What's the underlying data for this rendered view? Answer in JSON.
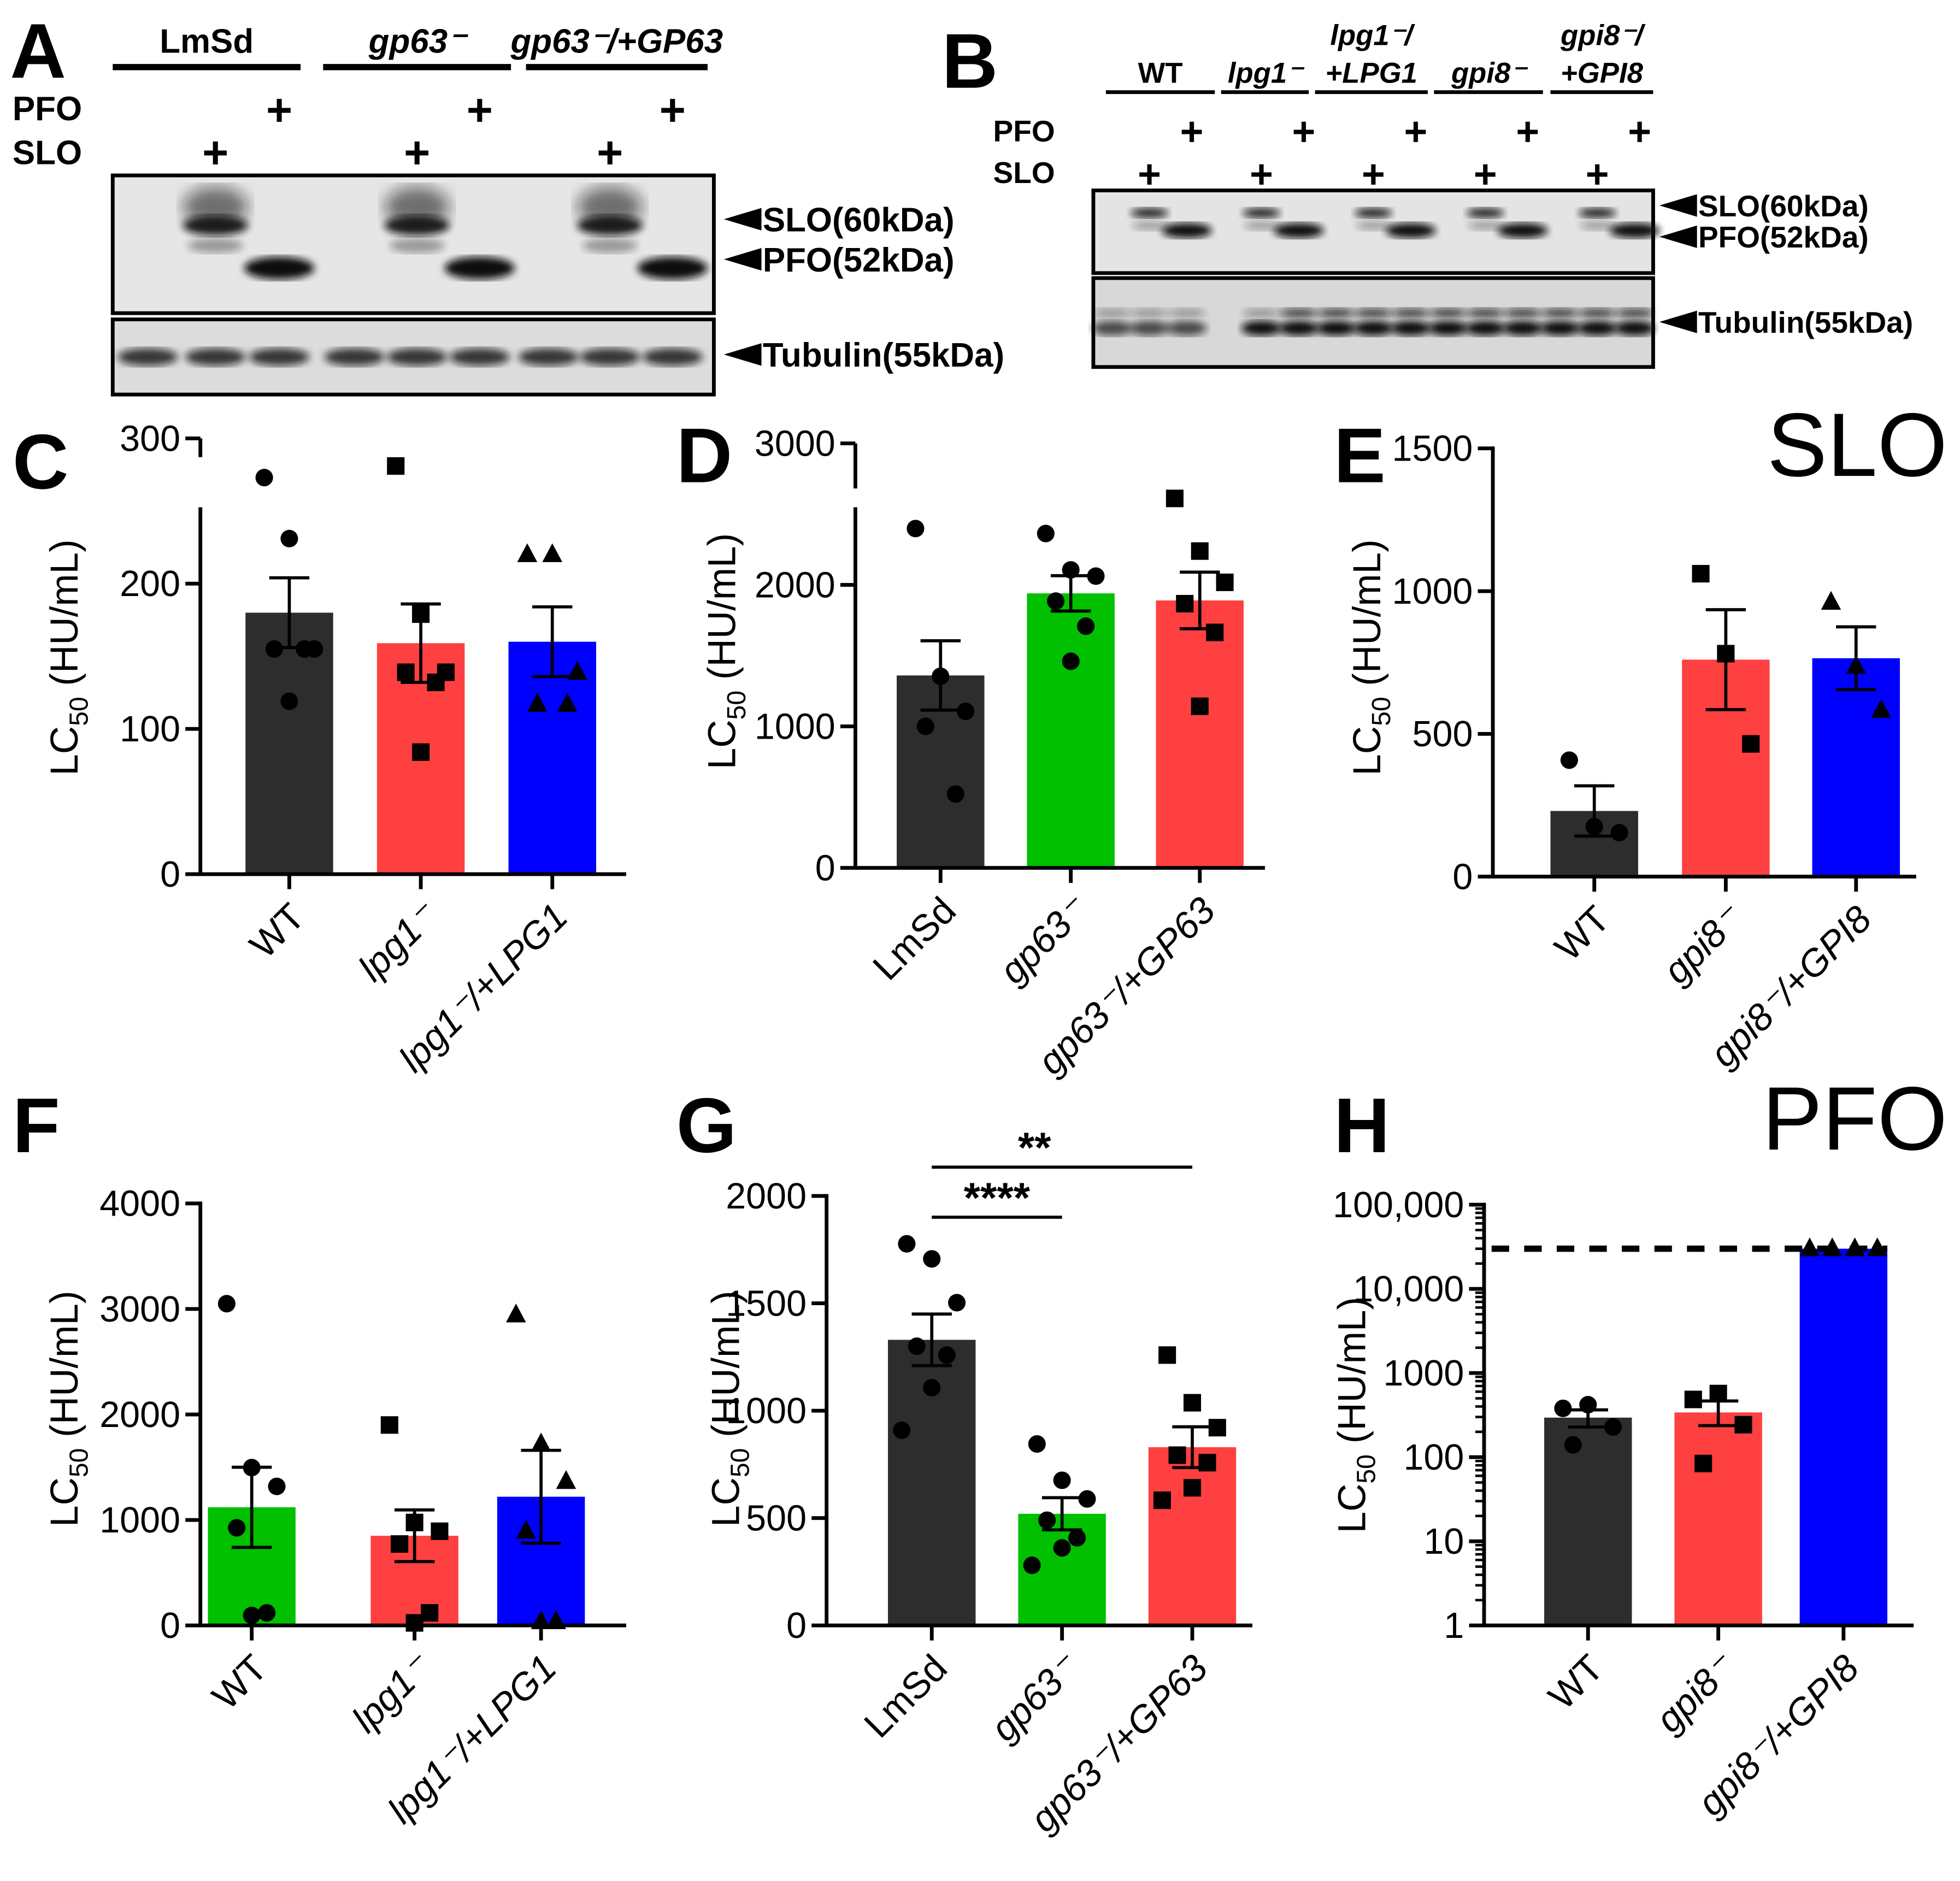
{
  "panels": {
    "A": {
      "letter": "A",
      "groups": [
        "LmSd",
        "gp63⁻",
        "gp63⁻/+GP63"
      ],
      "row_labels": {
        "pfo": "PFO",
        "slo": "SLO"
      },
      "plus_symbol": "+",
      "pfo_lanes": [
        false,
        false,
        true,
        false,
        false,
        true,
        false,
        false,
        true
      ],
      "slo_lanes": [
        false,
        true,
        false,
        false,
        true,
        false,
        false,
        true,
        false
      ],
      "band_labels": [
        "SLO(60kDa)",
        "PFO(52kDa)",
        "Tubulin(55kDa)"
      ]
    },
    "B": {
      "letter": "B",
      "groups": [
        [
          "WT"
        ],
        [
          "lpg1⁻"
        ],
        [
          "lpg1⁻/",
          "+LPG1"
        ],
        [
          "gpi8⁻"
        ],
        [
          "gpi8⁻/",
          "+GPI8"
        ]
      ],
      "row_labels": {
        "pfo": "PFO",
        "slo": "SLO"
      },
      "plus_symbol": "+",
      "pfo_lanes": [
        false,
        false,
        true,
        false,
        false,
        true,
        false,
        false,
        true,
        false,
        false,
        true,
        false,
        false,
        true
      ],
      "slo_lanes": [
        false,
        true,
        false,
        false,
        true,
        false,
        false,
        true,
        false,
        false,
        true,
        false,
        false,
        true,
        false
      ],
      "band_labels": [
        "SLO(60kDa)",
        "PFO(52kDa)",
        "Tubulin(55kDa)"
      ]
    }
  },
  "chart_data": [
    {
      "panel": "C",
      "type": "bar",
      "scale": "linear",
      "categories": [
        "WT",
        "lpg1⁻",
        "lpg1⁻/+LPG1"
      ],
      "values": [
        180,
        159,
        160
      ],
      "sem": [
        24,
        27,
        24
      ],
      "points": [
        [
          273,
          231,
          155,
          155,
          155,
          119
        ],
        [
          281,
          179,
          139,
          139,
          132,
          84
        ],
        [
          220,
          220,
          139,
          117,
          117
        ]
      ],
      "markers": [
        "circle",
        "square",
        "triangle"
      ],
      "colors": [
        "#2d2d2d",
        "#ff4040",
        "#0000ff"
      ],
      "ylim": [
        0,
        300
      ],
      "yticks": [
        0,
        100,
        200,
        300
      ],
      "ytick_labels": [
        "0",
        "100",
        "200",
        "300"
      ],
      "axis_break": true,
      "ylabel": {
        "main": "LC",
        "sub": "50",
        "unit": " (HU/mL)"
      }
    },
    {
      "panel": "D",
      "type": "bar",
      "scale": "linear",
      "categories": [
        "LmSd",
        "gp63⁻",
        "gp63⁻/+GP63"
      ],
      "values": [
        1360,
        1940,
        1890
      ],
      "sem": [
        245,
        125,
        200
      ],
      "points": [
        [
          2398,
          1354,
          1106,
          1000,
          522
        ],
        [
          2363,
          2106,
          2062,
          1885,
          1708,
          1460
        ],
        [
          2611,
          2239,
          2018,
          1867,
          1664,
          1142
        ]
      ],
      "markers": [
        "circle",
        "circle",
        "square"
      ],
      "colors": [
        "#2d2d2d",
        "#00c000",
        "#ff4040"
      ],
      "ylim": [
        0,
        3000
      ],
      "yticks": [
        0,
        1000,
        2000,
        3000
      ],
      "ytick_labels": [
        "0",
        "1000",
        "2000",
        "3000"
      ],
      "axis_break": true,
      "ylabel": {
        "main": "LC",
        "sub": "50",
        "unit": " (HU/mL)"
      }
    },
    {
      "panel": "E",
      "type": "bar",
      "scale": "linear",
      "title": "SLO",
      "categories": [
        "WT",
        "gpi8⁻",
        "gpi8⁻/+GPI8"
      ],
      "values": [
        230,
        760,
        765
      ],
      "sem": [
        88,
        175,
        110
      ],
      "points": [
        [
          408,
          175,
          154
        ],
        [
          1061,
          781,
          465
        ],
        [
          961,
          737,
          583
        ]
      ],
      "markers": [
        "circle",
        "square",
        "triangle"
      ],
      "colors": [
        "#2d2d2d",
        "#ff4040",
        "#0000ff"
      ],
      "ylim": [
        0,
        1500
      ],
      "yticks": [
        0,
        500,
        1000,
        1500
      ],
      "ytick_labels": [
        "0",
        "500",
        "1000",
        "1500"
      ],
      "ylabel": {
        "main": "LC",
        "sub": "50",
        "unit": " (HU/mL)"
      }
    },
    {
      "panel": "F",
      "type": "bar",
      "scale": "linear",
      "categories": [
        "WT",
        "lpg1⁻",
        "lpg1⁻/+LPG1"
      ],
      "values": [
        1120,
        850,
        1220
      ],
      "sem": [
        380,
        245,
        440
      ],
      "points": [
        [
          3050,
          1496,
          1318,
          926,
          119,
          95
        ],
        [
          1900,
          976,
          893,
          772,
          119,
          24
        ],
        [
          2944,
          1721,
          1365,
          893,
          36,
          36
        ]
      ],
      "markers": [
        "circle",
        "square",
        "triangle"
      ],
      "colors": [
        "#00c000",
        "#ff4040",
        "#0000ff"
      ],
      "ylim": [
        0,
        4000
      ],
      "yticks": [
        0,
        1000,
        2000,
        3000,
        4000
      ],
      "ytick_labels": [
        "0",
        "1000",
        "2000",
        "3000",
        "4000"
      ],
      "ylabel": {
        "main": "LC",
        "sub": "50",
        "unit": " (HU/mL)"
      }
    },
    {
      "panel": "G",
      "type": "bar",
      "scale": "linear",
      "categories": [
        "LmSd",
        "gp63⁻",
        "gp63⁻/+GP63"
      ],
      "values": [
        1330,
        520,
        830
      ],
      "sem": [
        120,
        75,
        95
      ],
      "points": [
        [
          1777,
          1707,
          1503,
          1300,
          1259,
          1107,
          909
        ],
        [
          845,
          676,
          589,
          490,
          408,
          361,
          280
        ],
        [
          1259,
          1037,
          921,
          793,
          758,
          641,
          583
        ]
      ],
      "markers": [
        "circle",
        "circle",
        "square"
      ],
      "colors": [
        "#2d2d2d",
        "#00c000",
        "#ff4040"
      ],
      "ylim": [
        0,
        2000
      ],
      "yticks": [
        0,
        500,
        1000,
        1500,
        2000
      ],
      "ytick_labels": [
        "0",
        "500",
        "1000",
        "1500",
        "2000"
      ],
      "significance": [
        {
          "pair": [
            0,
            1
          ],
          "label": "****"
        },
        {
          "pair": [
            0,
            2
          ],
          "label": "**"
        }
      ],
      "ylabel": {
        "main": "LC",
        "sub": "50",
        "unit": " (HU/mL)"
      }
    },
    {
      "panel": "H",
      "type": "bar",
      "scale": "log",
      "title": "PFO",
      "categories": [
        "WT",
        "gpi8⁻",
        "gpi8⁻/+GPI8"
      ],
      "values": [
        295,
        340,
        30000
      ],
      "sem_range": [
        [
          228,
          365
        ],
        [
          237,
          465
        ],
        null
      ],
      "points": [
        [
          380,
          420,
          228,
          140
        ],
        [
          485,
          570,
          243,
          84
        ],
        [
          30000,
          30000,
          30000,
          30000
        ]
      ],
      "markers": [
        "circle",
        "square",
        "triangle"
      ],
      "colors": [
        "#2d2d2d",
        "#ff4040",
        "#0000ff"
      ],
      "reference_line": 30000,
      "ylim": [
        1,
        100000
      ],
      "yticks": [
        1,
        10,
        100,
        1000,
        10000,
        100000
      ],
      "ytick_labels": [
        "1",
        "10",
        "100",
        "1000",
        "10,000",
        "100,000"
      ],
      "ylabel": {
        "main": "LC",
        "sub": "50",
        "unit": " (HU/mL)"
      }
    }
  ]
}
